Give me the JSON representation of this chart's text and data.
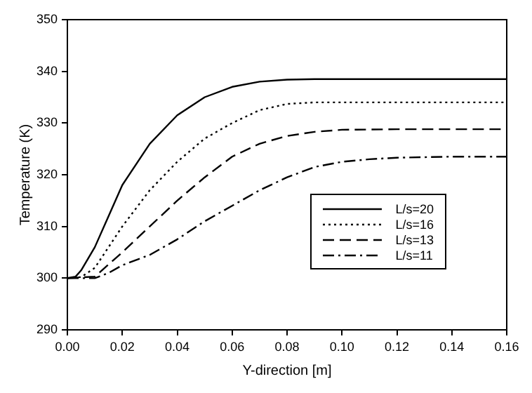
{
  "chart_data": {
    "type": "line",
    "xlabel": "Y-direction [m]",
    "ylabel": "Temperature (K)",
    "xlim": [
      0,
      0.16
    ],
    "xticks": [
      {
        "value": 0,
        "label": "0.00"
      },
      {
        "value": 0.02,
        "label": "0.02"
      },
      {
        "value": 0.04,
        "label": "0.04"
      },
      {
        "value": 0.06,
        "label": "0.06"
      },
      {
        "value": 0.08,
        "label": "0.08"
      },
      {
        "value": 0.1,
        "label": "0.10"
      },
      {
        "value": 0.12,
        "label": "0.12"
      },
      {
        "value": 0.14,
        "label": "0.14"
      },
      {
        "value": 0.16,
        "label": "0.16"
      }
    ],
    "ylim": [
      290,
      350
    ],
    "yticks": [
      290,
      300,
      310,
      320,
      330,
      340,
      350
    ],
    "grid": false,
    "legend": "bottom right",
    "marker": "none",
    "series": [
      {
        "name": "L/s=20",
        "color": "#000000",
        "line_style": "solid",
        "x": [
          0,
          0.003,
          0.005,
          0.01,
          0.015,
          0.02,
          0.03,
          0.04,
          0.05,
          0.06,
          0.07,
          0.08,
          0.09,
          0.16
        ],
        "values": [
          300,
          300.3,
          301.5,
          306,
          312,
          318,
          326,
          331.5,
          335,
          337,
          338,
          338.4,
          338.5,
          338.5
        ]
      },
      {
        "name": "L/s=16",
        "color": "#000000",
        "line_style": "dotted",
        "x": [
          0,
          0.005,
          0.01,
          0.02,
          0.03,
          0.04,
          0.05,
          0.06,
          0.07,
          0.08,
          0.09,
          0.16
        ],
        "values": [
          300,
          300.2,
          302,
          310,
          317,
          322.5,
          327,
          330,
          332.5,
          333.7,
          334,
          334
        ]
      },
      {
        "name": "L/s=13",
        "color": "#000000",
        "line_style": "dashed",
        "x": [
          0,
          0.01,
          0.02,
          0.03,
          0.04,
          0.05,
          0.06,
          0.07,
          0.08,
          0.09,
          0.1,
          0.12,
          0.16
        ],
        "values": [
          300,
          300.3,
          305,
          310,
          315,
          319.5,
          323.5,
          326,
          327.5,
          328.3,
          328.7,
          328.8,
          328.8
        ]
      },
      {
        "name": "L/s=11",
        "color": "#000000",
        "line_style": "dashdot",
        "x": [
          0,
          0.01,
          0.015,
          0.02,
          0.03,
          0.04,
          0.05,
          0.06,
          0.07,
          0.08,
          0.09,
          0.1,
          0.11,
          0.12,
          0.14,
          0.16
        ],
        "values": [
          300,
          300,
          301,
          302.5,
          304.5,
          307.5,
          311,
          314,
          317,
          319.5,
          321.5,
          322.5,
          323,
          323.3,
          323.5,
          323.5
        ]
      }
    ]
  }
}
